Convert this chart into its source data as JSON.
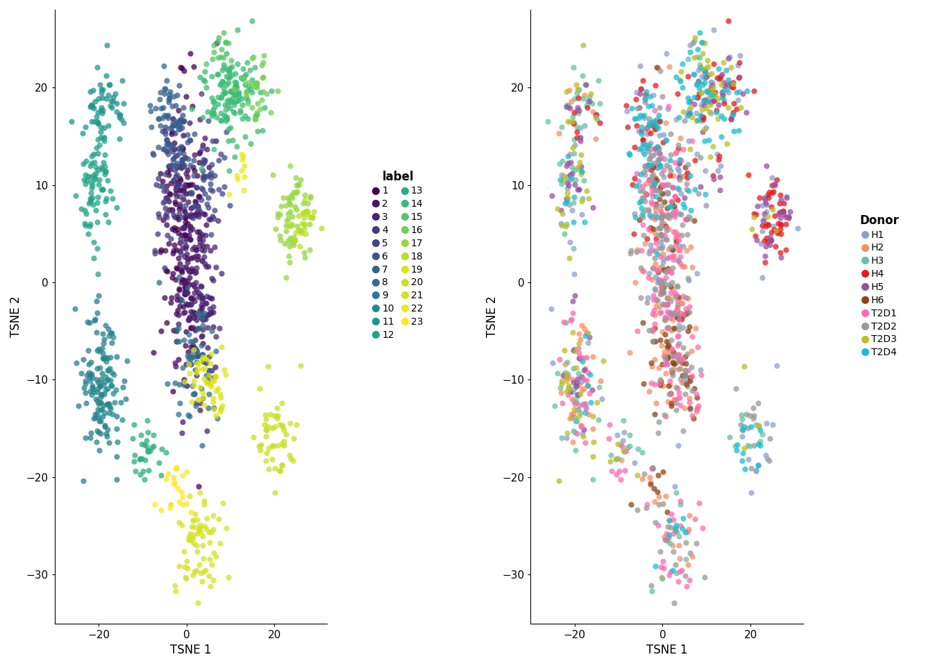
{
  "label_colors": {
    "1": "#440154",
    "2": "#481567",
    "3": "#482677",
    "4": "#453781",
    "5": "#3F4788",
    "6": "#39558C",
    "7": "#32648E",
    "8": "#2D718E",
    "9": "#287D8E",
    "10": "#238A8D",
    "11": "#1F968B",
    "12": "#20A386",
    "13": "#29AF7F",
    "14": "#3CBB75",
    "15": "#55C667",
    "16": "#73D055",
    "17": "#95D840",
    "18": "#B8DE29",
    "19": "#DCE319",
    "20": "#C8DF24",
    "21": "#D4E226",
    "22": "#E8EA1A",
    "23": "#FDE725"
  },
  "donor_colors": {
    "H1": "#8DA0CB",
    "H2": "#FC8D62",
    "H3": "#66C2A5",
    "H4": "#E41A1C",
    "H5": "#984EA3",
    "H6": "#8B4513",
    "T2D1": "#FF69B4",
    "T2D2": "#999999",
    "T2D3": "#BCBD22",
    "T2D4": "#17BECF"
  },
  "xlim": [
    -30,
    32
  ],
  "ylim": [
    -35,
    28
  ],
  "xticks": [
    -20,
    0,
    20
  ],
  "yticks": [
    -30,
    -20,
    -10,
    0,
    10,
    20
  ],
  "xlabel": "TSNE 1",
  "ylabel": "TSNE 2",
  "point_size": 35,
  "alpha": 0.75,
  "seed": 42
}
